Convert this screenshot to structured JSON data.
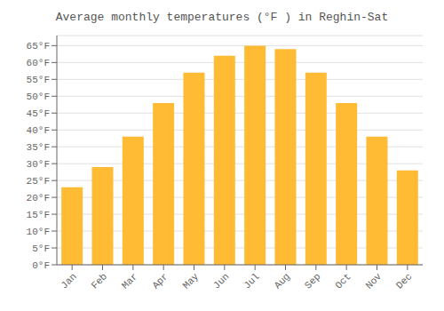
{
  "chart_data": {
    "type": "bar",
    "title": "Average monthly temperatures (°F ) in Reghin-Sat",
    "categories": [
      "Jan",
      "Feb",
      "Mar",
      "Apr",
      "May",
      "Jun",
      "Jul",
      "Aug",
      "Sep",
      "Oct",
      "Nov",
      "Dec"
    ],
    "values": [
      23,
      29,
      38,
      48,
      57,
      62,
      65,
      64,
      57,
      48,
      38,
      28
    ],
    "color": "#FFBB33",
    "ylim": [
      0,
      68
    ],
    "yticks": [
      {
        "value": 0,
        "label": "0°F"
      },
      {
        "value": 5,
        "label": "5°F"
      },
      {
        "value": 10,
        "label": "10°F"
      },
      {
        "value": 15,
        "label": "15°F"
      },
      {
        "value": 20,
        "label": "20°F"
      },
      {
        "value": 25,
        "label": "25°F"
      },
      {
        "value": 30,
        "label": "30°F"
      },
      {
        "value": 35,
        "label": "35°F"
      },
      {
        "value": 40,
        "label": "40°F"
      },
      {
        "value": 45,
        "label": "45°F"
      },
      {
        "value": 50,
        "label": "50°F"
      },
      {
        "value": 55,
        "label": "55°F"
      },
      {
        "value": 60,
        "label": "60°F"
      },
      {
        "value": 65,
        "label": "65°F"
      }
    ],
    "grid": true
  }
}
